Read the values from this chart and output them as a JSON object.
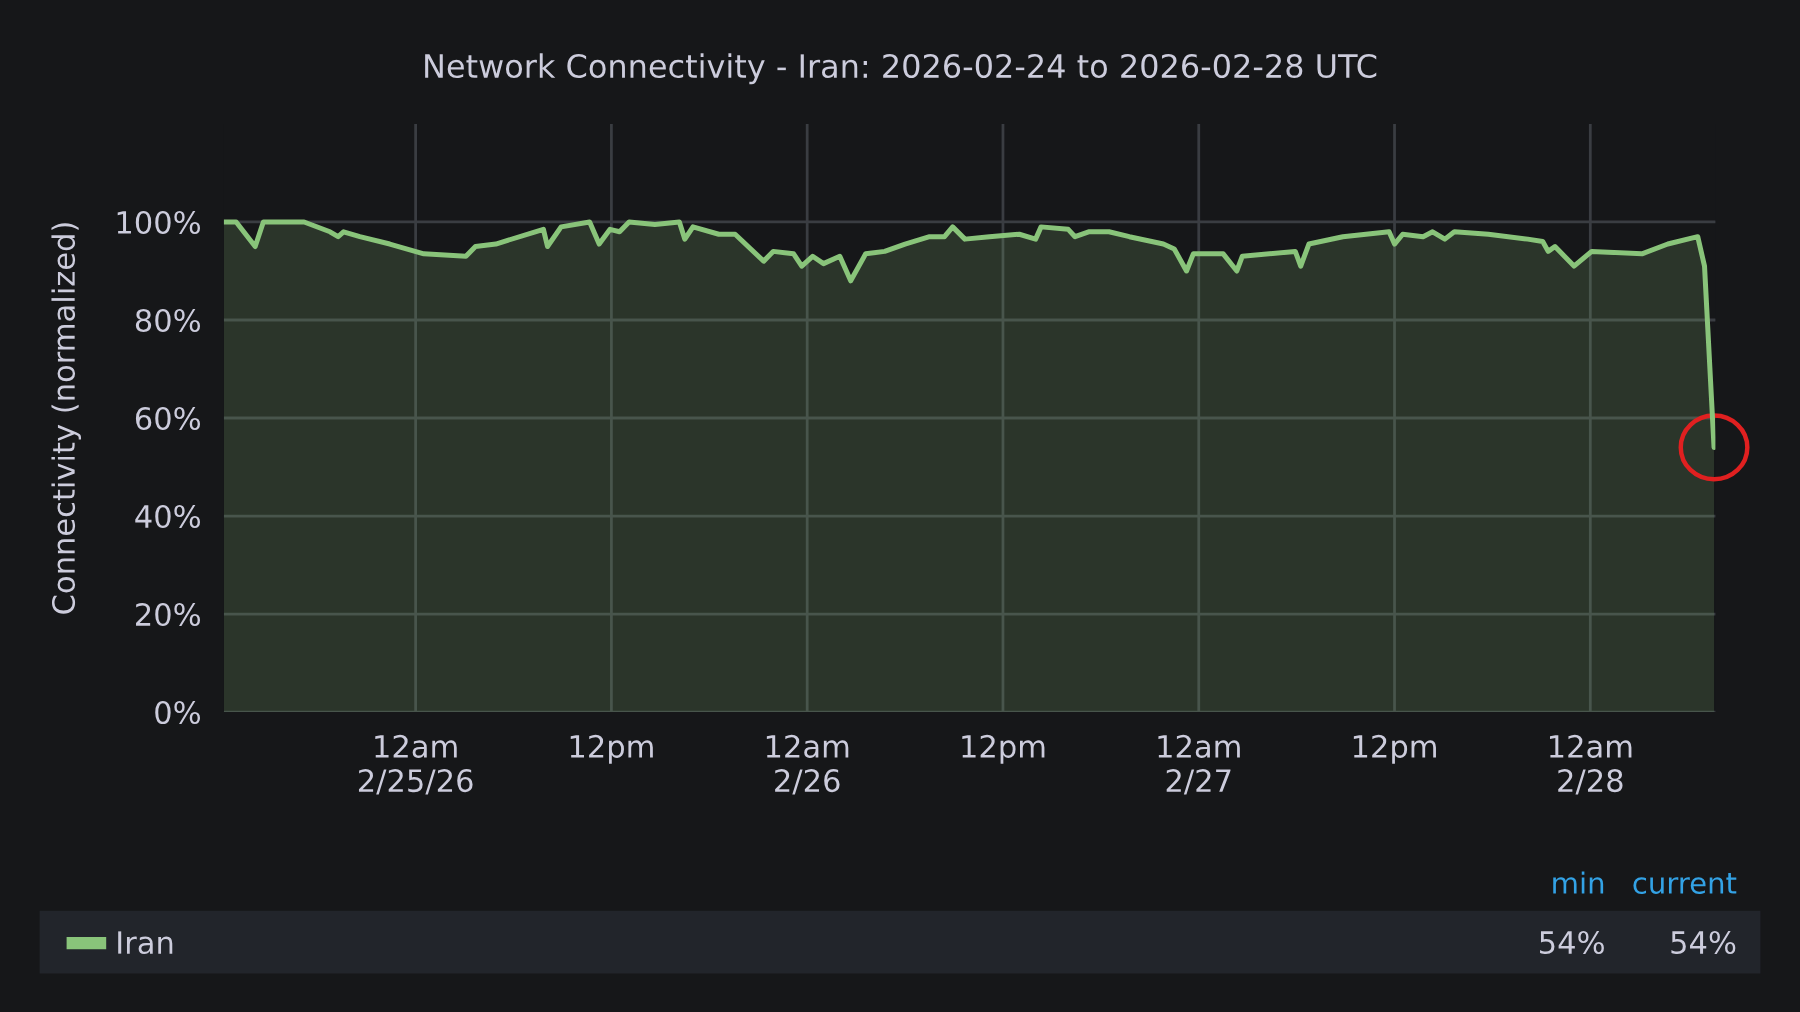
{
  "chart_data": {
    "type": "area",
    "title": "Network Connectivity - Iran: 2026-02-24 to 2026-02-28 UTC",
    "ylabel": "Connectivity (normalized)",
    "x": [
      "2026-02-24T12:15",
      "2026-02-24T13:00",
      "2026-02-24T14:10",
      "2026-02-24T14:40",
      "2026-02-24T17:10",
      "2026-02-24T18:45",
      "2026-02-24T19:15",
      "2026-02-24T19:35",
      "2026-02-24T20:35",
      "2026-02-24T22:25",
      "2026-02-25T00:30",
      "2026-02-25T03:05",
      "2026-02-25T03:40",
      "2026-02-25T04:55",
      "2026-02-25T07:20",
      "2026-02-25T07:50",
      "2026-02-25T08:05",
      "2026-02-25T08:55",
      "2026-02-25T10:40",
      "2026-02-25T11:15",
      "2026-02-25T11:55",
      "2026-02-25T12:30",
      "2026-02-25T13:05",
      "2026-02-25T14:40",
      "2026-02-25T16:10",
      "2026-02-25T16:30",
      "2026-02-25T17:00",
      "2026-02-25T18:35",
      "2026-02-25T19:35",
      "2026-02-25T21:20",
      "2026-02-25T21:55",
      "2026-02-25T23:10",
      "2026-02-25T23:40",
      "2026-02-26T00:20",
      "2026-02-26T01:00",
      "2026-02-26T02:00",
      "2026-02-26T02:40",
      "2026-02-26T03:35",
      "2026-02-26T04:45",
      "2026-02-26T06:00",
      "2026-02-26T07:30",
      "2026-02-26T08:25",
      "2026-02-26T08:55",
      "2026-02-26T09:40",
      "2026-02-26T11:10",
      "2026-02-26T13:00",
      "2026-02-26T14:00",
      "2026-02-26T14:20",
      "2026-02-26T16:00",
      "2026-02-26T16:25",
      "2026-02-26T17:15",
      "2026-02-26T18:30",
      "2026-02-26T19:45",
      "2026-02-26T21:50",
      "2026-02-26T22:30",
      "2026-02-26T23:15",
      "2026-02-26T23:40",
      "2026-02-27T01:30",
      "2026-02-27T02:20",
      "2026-02-27T02:40",
      "2026-02-27T05:55",
      "2026-02-27T06:15",
      "2026-02-27T06:45",
      "2026-02-27T08:50",
      "2026-02-27T11:40",
      "2026-02-27T12:00",
      "2026-02-27T12:30",
      "2026-02-27T13:45",
      "2026-02-27T14:20",
      "2026-02-27T15:05",
      "2026-02-27T15:40",
      "2026-02-27T17:45",
      "2026-02-27T20:10",
      "2026-02-27T21:05",
      "2026-02-27T21:25",
      "2026-02-27T21:50",
      "2026-02-27T23:00",
      "2026-02-28T00:05",
      "2026-02-28T03:10",
      "2026-02-28T04:45",
      "2026-02-28T06:35",
      "2026-02-28T07:00",
      "2026-02-28T07:35"
    ],
    "series": [
      {
        "name": "Iran",
        "color": "#89c47a",
        "values": [
          100,
          100,
          95,
          100,
          100,
          98,
          97,
          98,
          97,
          95.5,
          93.5,
          93,
          95,
          95.5,
          98,
          98.5,
          95,
          99,
          100,
          95.5,
          98.5,
          98,
          100,
          99.5,
          100,
          96.5,
          99,
          97.5,
          97.5,
          92,
          94,
          93.5,
          91,
          93,
          91.5,
          93,
          88,
          93.5,
          94,
          95.5,
          97,
          97,
          99,
          96.5,
          97,
          97.5,
          96.5,
          99,
          98.5,
          97,
          98,
          98,
          97,
          95.5,
          94.5,
          90,
          93.5,
          93.5,
          90,
          93,
          94,
          91,
          95.5,
          97,
          98,
          95.5,
          97.5,
          97,
          98,
          96.5,
          98,
          97.5,
          96.5,
          96,
          94,
          95,
          91,
          94,
          93.5,
          95.5,
          97,
          91,
          54
        ]
      }
    ],
    "xlim": [
      "2026-02-24T12:15",
      "2026-02-28T07:40"
    ],
    "xticks": [
      {
        "value": "2026-02-25T00:00",
        "label": "12am\n2/25/26"
      },
      {
        "value": "2026-02-25T12:00",
        "label": "12pm"
      },
      {
        "value": "2026-02-26T00:00",
        "label": "12am\n2/26"
      },
      {
        "value": "2026-02-26T12:00",
        "label": "12pm"
      },
      {
        "value": "2026-02-27T00:00",
        "label": "12am\n2/27"
      },
      {
        "value": "2026-02-27T12:00",
        "label": "12pm"
      },
      {
        "value": "2026-02-28T00:00",
        "label": "12am\n2/28"
      }
    ],
    "ylim": [
      0,
      120
    ],
    "yticks": [
      {
        "value": 0,
        "label": "0%"
      },
      {
        "value": 20,
        "label": "20%"
      },
      {
        "value": 40,
        "label": "40%"
      },
      {
        "value": 60,
        "label": "60%"
      },
      {
        "value": 80,
        "label": "80%"
      },
      {
        "value": 100,
        "label": "100%"
      }
    ],
    "grid": true,
    "legend": "bottom",
    "annotations": [
      "min",
      "current",
      "54%",
      "54%"
    ]
  }
}
